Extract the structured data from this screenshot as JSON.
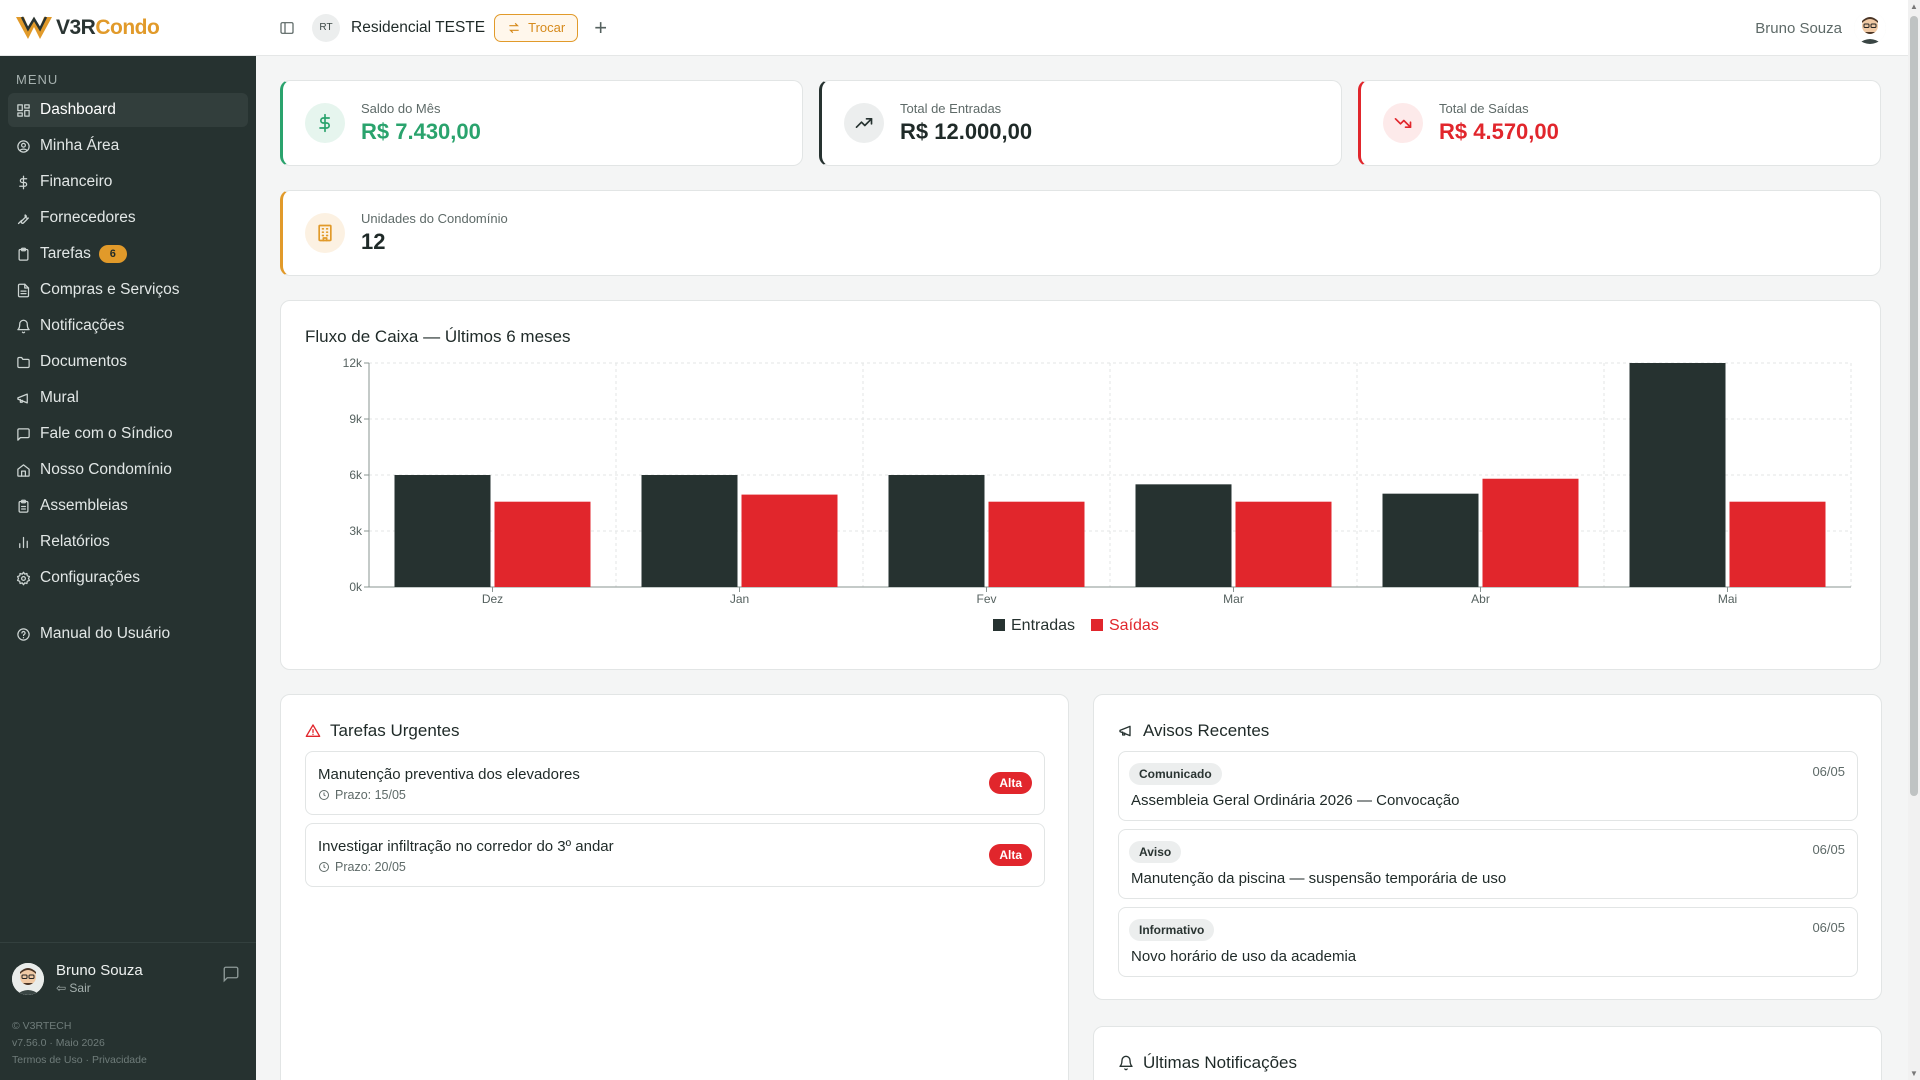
{
  "brand": {
    "logo_part1": "V3R",
    "logo_part2": "Condo"
  },
  "colors": {
    "sidebar_bg": "#263230",
    "accent_orange": "#e19a2a",
    "green": "#2aa36d",
    "red": "#e1262c",
    "dark": "#263230"
  },
  "sidebar": {
    "menu_title": "MENU",
    "items": [
      {
        "label": "Dashboard",
        "icon": "dashboard-icon",
        "active": true
      },
      {
        "label": "Minha Área",
        "icon": "user-circle-icon"
      },
      {
        "label": "Financeiro",
        "icon": "dollar-icon"
      },
      {
        "label": "Fornecedores",
        "icon": "wrench-icon"
      },
      {
        "label": "Tarefas",
        "icon": "clipboard-icon",
        "badge": "6"
      },
      {
        "label": "Compras e Serviços",
        "icon": "document-icon"
      },
      {
        "label": "Notificações",
        "icon": "bell-icon"
      },
      {
        "label": "Documentos",
        "icon": "folder-icon"
      },
      {
        "label": "Mural",
        "icon": "megaphone-icon"
      },
      {
        "label": "Fale com o Síndico",
        "icon": "message-icon"
      },
      {
        "label": "Nosso Condomínio",
        "icon": "home-icon"
      },
      {
        "label": "Assembleias",
        "icon": "clipboard-list-icon"
      },
      {
        "label": "Relatórios",
        "icon": "bar-chart-icon"
      },
      {
        "label": "Configurações",
        "icon": "gear-icon"
      }
    ],
    "manual_label": "Manual do Usuário",
    "user": {
      "name": "Bruno Souza",
      "logout": "Sair"
    },
    "footer": {
      "copyright": "© V3RTECH",
      "version": "v7.56.0 · Maio 2026",
      "terms": "Termos de Uso",
      "privacy": "Privacidade"
    }
  },
  "topbar": {
    "condo_initials": "RT",
    "condo_name": "Residencial TESTE",
    "switch_label": "Trocar",
    "add_label": "+",
    "user_name": "Bruno Souza"
  },
  "stats": {
    "saldo": {
      "label": "Saldo do Mês",
      "value": "R$ 7.430,00"
    },
    "entradas": {
      "label": "Total de Entradas",
      "value": "R$ 12.000,00"
    },
    "saidas": {
      "label": "Total de Saídas",
      "value": "R$ 4.570,00"
    },
    "unidades": {
      "label": "Unidades do Condomínio",
      "value": "12"
    }
  },
  "chart_data": {
    "type": "bar",
    "title": "Fluxo de Caixa — Últimos 6 meses",
    "categories": [
      "Dez",
      "Jan",
      "Fev",
      "Mar",
      "Abr",
      "Mai"
    ],
    "series": [
      {
        "name": "Entradas",
        "color": "#263230",
        "values": [
          6000,
          6000,
          6000,
          5500,
          5000,
          12000
        ]
      },
      {
        "name": "Saídas",
        "color": "#e1262c",
        "values": [
          4570,
          4950,
          4570,
          4570,
          5800,
          4570
        ]
      }
    ],
    "yticks": [
      "0k",
      "3k",
      "6k",
      "9k",
      "12k"
    ],
    "ylim": [
      0,
      12000
    ],
    "grid": true,
    "legend": "bottom-center"
  },
  "tasks": {
    "title": "Tarefas Urgentes",
    "items": [
      {
        "title": "Manutenção preventiva dos elevadores",
        "due": "Prazo: 15/05",
        "priority": "Alta"
      },
      {
        "title": "Investigar infiltração no corredor do 3º andar",
        "due": "Prazo: 20/05",
        "priority": "Alta"
      }
    ]
  },
  "notices": {
    "title": "Avisos Recentes",
    "items": [
      {
        "tag": "Comunicado",
        "date": "06/05",
        "title": "Assembleia Geral Ordinária 2026 — Convocação"
      },
      {
        "tag": "Aviso",
        "date": "06/05",
        "title": "Manutenção da piscina — suspensão temporária de uso"
      },
      {
        "tag": "Informativo",
        "date": "06/05",
        "title": "Novo horário de uso da academia"
      }
    ]
  },
  "notifications": {
    "title": "Últimas Notificações"
  }
}
